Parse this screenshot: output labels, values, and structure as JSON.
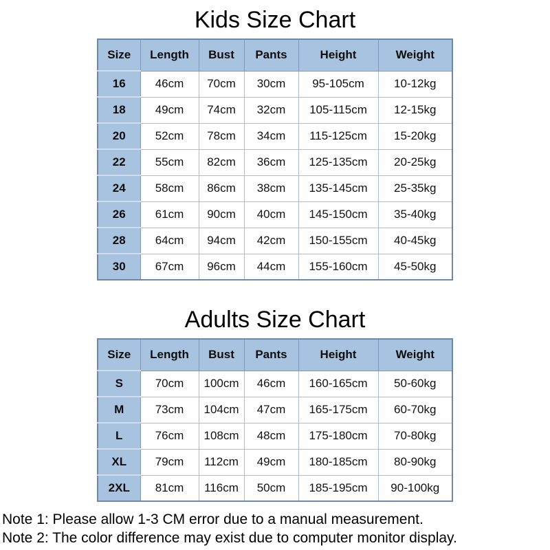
{
  "colors": {
    "header_bg": "#a8c3e0",
    "cell_bg": "#fefefe",
    "outer_border": "#6e87a5",
    "inner_border_dark": "#7e99b8",
    "inner_border_light": "#a9bcd4",
    "text": "#000000"
  },
  "chart_data": [
    {
      "type": "table",
      "title": "Kids Size Chart",
      "columns": [
        "Size",
        "Length",
        "Bust",
        "Pants",
        "Height",
        "Weight"
      ],
      "rows": [
        [
          "16",
          "46cm",
          "70cm",
          "30cm",
          "95-105cm",
          "10-12kg"
        ],
        [
          "18",
          "49cm",
          "74cm",
          "32cm",
          "105-115cm",
          "12-15kg"
        ],
        [
          "20",
          "52cm",
          "78cm",
          "34cm",
          "115-125cm",
          "15-20kg"
        ],
        [
          "22",
          "55cm",
          "82cm",
          "36cm",
          "125-135cm",
          "20-25kg"
        ],
        [
          "24",
          "58cm",
          "86cm",
          "38cm",
          "135-145cm",
          "25-35kg"
        ],
        [
          "26",
          "61cm",
          "90cm",
          "40cm",
          "145-150cm",
          "35-40kg"
        ],
        [
          "28",
          "64cm",
          "94cm",
          "42cm",
          "150-155cm",
          "40-45kg"
        ],
        [
          "30",
          "67cm",
          "96cm",
          "44cm",
          "155-160cm",
          "45-50kg"
        ]
      ]
    },
    {
      "type": "table",
      "title": "Adults Size Chart",
      "columns": [
        "Size",
        "Length",
        "Bust",
        "Pants",
        "Height",
        "Weight"
      ],
      "rows": [
        [
          "S",
          "70cm",
          "100cm",
          "46cm",
          "160-165cm",
          "50-60kg"
        ],
        [
          "M",
          "73cm",
          "104cm",
          "47cm",
          "165-175cm",
          "60-70kg"
        ],
        [
          "L",
          "76cm",
          "108cm",
          "48cm",
          "175-180cm",
          "70-80kg"
        ],
        [
          "XL",
          "79cm",
          "112cm",
          "49cm",
          "180-185cm",
          "80-90kg"
        ],
        [
          "2XL",
          "81cm",
          "116cm",
          "50cm",
          "185-195cm",
          "90-100kg"
        ]
      ]
    }
  ],
  "notes": [
    "Note 1: Please allow 1-3 CM error due to a manual measurement.",
    "Note 2: The color difference may exist due to computer monitor display."
  ]
}
